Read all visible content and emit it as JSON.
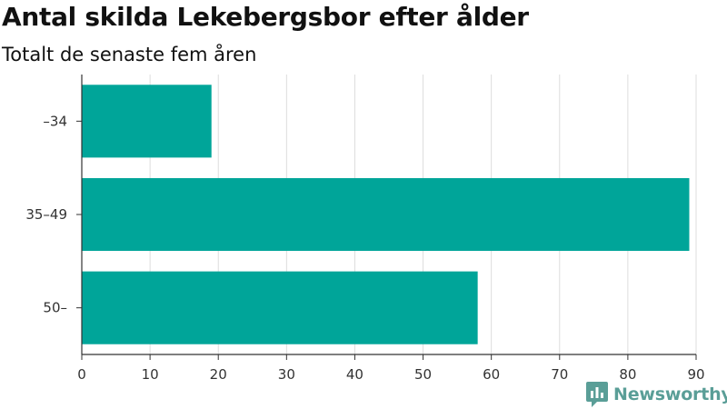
{
  "chart_data": {
    "type": "bar",
    "orientation": "horizontal",
    "title": "Antal skilda Lekebergsbor efter ålder",
    "subtitle": "Totalt de senaste fem åren",
    "categories": [
      "–34",
      "35–49",
      "50–"
    ],
    "values": [
      19,
      89,
      58
    ],
    "xlim": [
      0,
      90
    ],
    "xticks": [
      "0",
      "10",
      "20",
      "30",
      "40",
      "50",
      "60",
      "70",
      "80",
      "90"
    ],
    "xlabel": "",
    "ylabel": "",
    "grid": "vertical",
    "bar_color": "#00a599"
  },
  "branding": {
    "logo_text": "Newsworthy",
    "logo_color": "#5a9e97"
  }
}
